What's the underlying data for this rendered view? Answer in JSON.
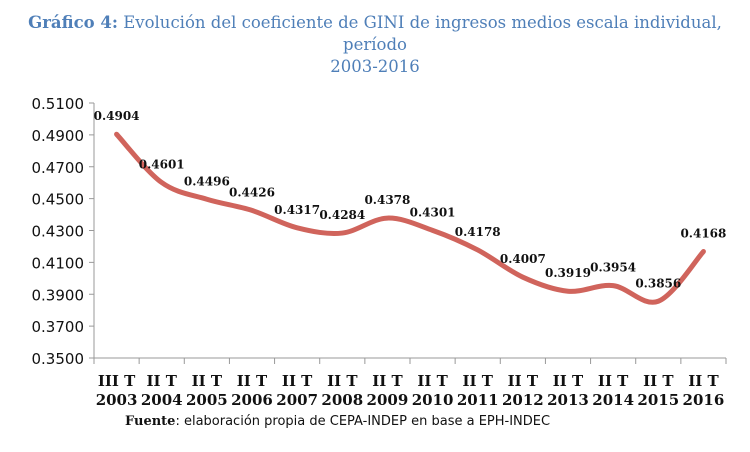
{
  "title": {
    "label": "Gráfico 4:",
    "text": "Evolución del coeficiente de GINI de ingresos medios escala individual, período",
    "line2": "2003-2016"
  },
  "chart_data": {
    "type": "line",
    "title": "Gráfico 4: Evolución del coeficiente de GINI de ingresos medios escala individual, período 2003-2016",
    "xlabel": "",
    "ylabel": "",
    "ylim": [
      0.35,
      0.51
    ],
    "yticks": [
      "0.3500",
      "0.3700",
      "0.3900",
      "0.4100",
      "0.4300",
      "0.4500",
      "0.4700",
      "0.4900",
      "0.5100"
    ],
    "categories": [
      {
        "quarter": "III T",
        "year": "2003"
      },
      {
        "quarter": "II T",
        "year": "2004"
      },
      {
        "quarter": "II T",
        "year": "2005"
      },
      {
        "quarter": "II T",
        "year": "2006"
      },
      {
        "quarter": "II T",
        "year": "2007"
      },
      {
        "quarter": "II T",
        "year": "2008"
      },
      {
        "quarter": "II T",
        "year": "2009"
      },
      {
        "quarter": "II T",
        "year": "2010"
      },
      {
        "quarter": "II T",
        "year": "2011"
      },
      {
        "quarter": "II T",
        "year": "2012"
      },
      {
        "quarter": "II T",
        "year": "2013"
      },
      {
        "quarter": "II T",
        "year": "2014"
      },
      {
        "quarter": "II T",
        "year": "2015"
      },
      {
        "quarter": "II T",
        "year": "2016"
      }
    ],
    "values": [
      0.4904,
      0.4601,
      0.4496,
      0.4426,
      0.4317,
      0.4284,
      0.4378,
      0.4301,
      0.4178,
      0.4007,
      0.3919,
      0.3954,
      0.3856,
      0.4168
    ],
    "labels": [
      "0.4904",
      "0.4601",
      "0.4496",
      "0.4426",
      "0.4317",
      "0.4284",
      "0.4378",
      "0.4301",
      "0.4178",
      "0.4007",
      "0.3919",
      "0.3954",
      "0.3856",
      "0.4168"
    ],
    "grid": false,
    "series_color": "#d0645c"
  },
  "source": {
    "label": "Fuente",
    "text": ": elaboración propia de CEPA-INDEP en base a EPH-INDEC"
  }
}
